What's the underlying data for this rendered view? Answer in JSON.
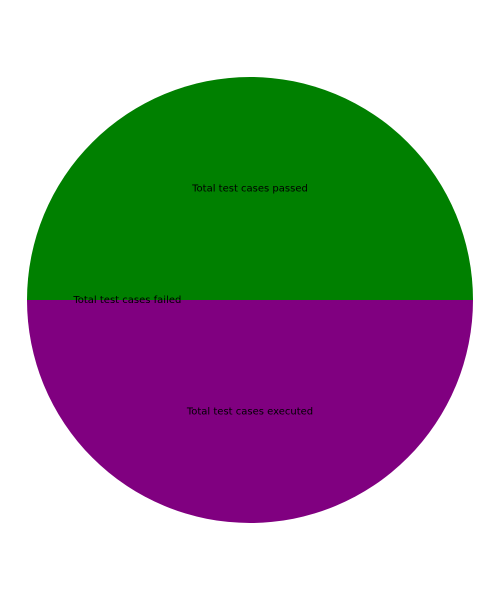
{
  "chart_data": {
    "type": "pie",
    "start_angle_deg": 0,
    "direction": "counterclockwise",
    "slices": [
      {
        "label": "Total test cases passed",
        "value": 50,
        "color": "#008000"
      },
      {
        "label": "Total test cases failed",
        "value": 0,
        "color": "#ff0000"
      },
      {
        "label": "Total test cases executed",
        "value": 50,
        "color": "#800080"
      }
    ]
  }
}
